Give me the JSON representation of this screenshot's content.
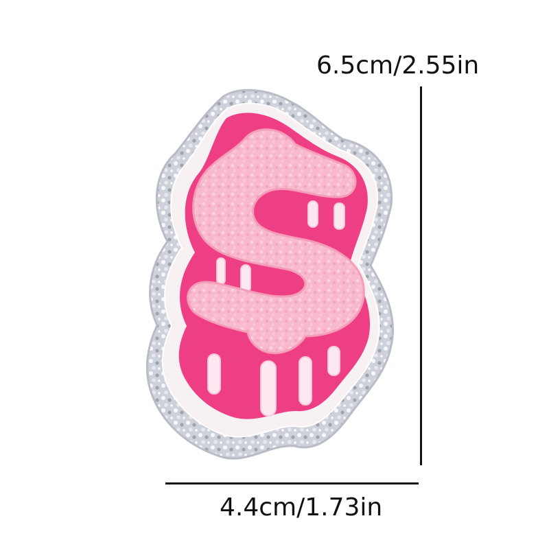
{
  "product": {
    "subject-icon": "dollar-sign-chenille-patch-icon",
    "colors": {
      "glitter_border": "#c9cbd4",
      "felt_backing": "#f8f1f4",
      "hot_pink": "#ef3f84",
      "light_pink": "#f8b8ce",
      "drip_highlight": "#fde7f0"
    }
  },
  "dimensions": {
    "height_label": "6.5cm/2.55in",
    "width_label": "4.4cm/1.73in"
  }
}
